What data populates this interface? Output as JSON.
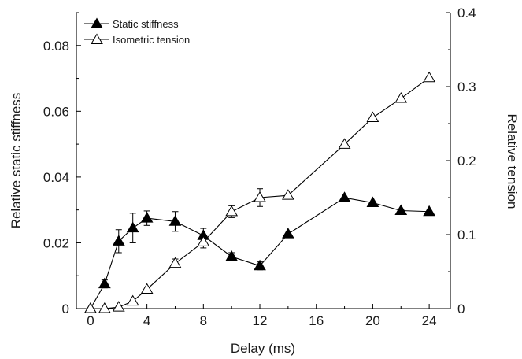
{
  "chart_data": {
    "type": "line",
    "xlabel": "Delay (ms)",
    "ylabel_left": "Relative static stiffness",
    "ylabel_right": "Relative tension",
    "xlim": [
      -1,
      25.5
    ],
    "ylim_left": [
      0,
      0.09
    ],
    "ylim_right": [
      0,
      0.4
    ],
    "x_ticks": [
      0,
      4,
      8,
      12,
      16,
      20,
      24
    ],
    "y_left_ticks": [
      0,
      0.02,
      0.04,
      0.06,
      0.08
    ],
    "y_left_tick_labels": [
      "0",
      "0.02",
      "0.04",
      "0.06",
      "0.08"
    ],
    "y_right_ticks": [
      0,
      0.1,
      0.2,
      0.3,
      0.4
    ],
    "y_right_tick_labels": [
      "0",
      "0.1",
      "0.2",
      "0.3",
      "0.4"
    ],
    "grid": false,
    "legend_position": "top-left",
    "series": [
      {
        "name": "Static stiffness",
        "axis": "left",
        "marker": "filled-triangle",
        "x": [
          0,
          1,
          2,
          3,
          4,
          6,
          8,
          10,
          12,
          14,
          18,
          20,
          22,
          24
        ],
        "y": [
          0,
          0.0075,
          0.0205,
          0.0245,
          0.0275,
          0.0265,
          0.0222,
          0.0158,
          0.013,
          0.0227,
          0.0337,
          0.0322,
          0.0298,
          0.0295
        ],
        "err": [
          0,
          0.0012,
          0.0035,
          0.0045,
          0.0022,
          0.003,
          0.0022,
          0.0012,
          0.0012,
          0,
          0,
          0,
          0,
          0
        ]
      },
      {
        "name": "Isometric tension",
        "axis": "right",
        "marker": "open-triangle",
        "x": [
          0,
          1,
          2,
          3,
          4,
          6,
          8,
          10,
          12,
          14,
          18,
          20,
          22,
          24
        ],
        "y": [
          0,
          0,
          0.002,
          0.01,
          0.026,
          0.061,
          0.09,
          0.131,
          0.15,
          0.153,
          0.222,
          0.258,
          0.284,
          0.312
        ],
        "err": [
          0,
          0,
          0,
          0,
          0,
          0.006,
          0.008,
          0.008,
          0.012,
          0,
          0,
          0,
          0,
          0
        ]
      }
    ]
  }
}
